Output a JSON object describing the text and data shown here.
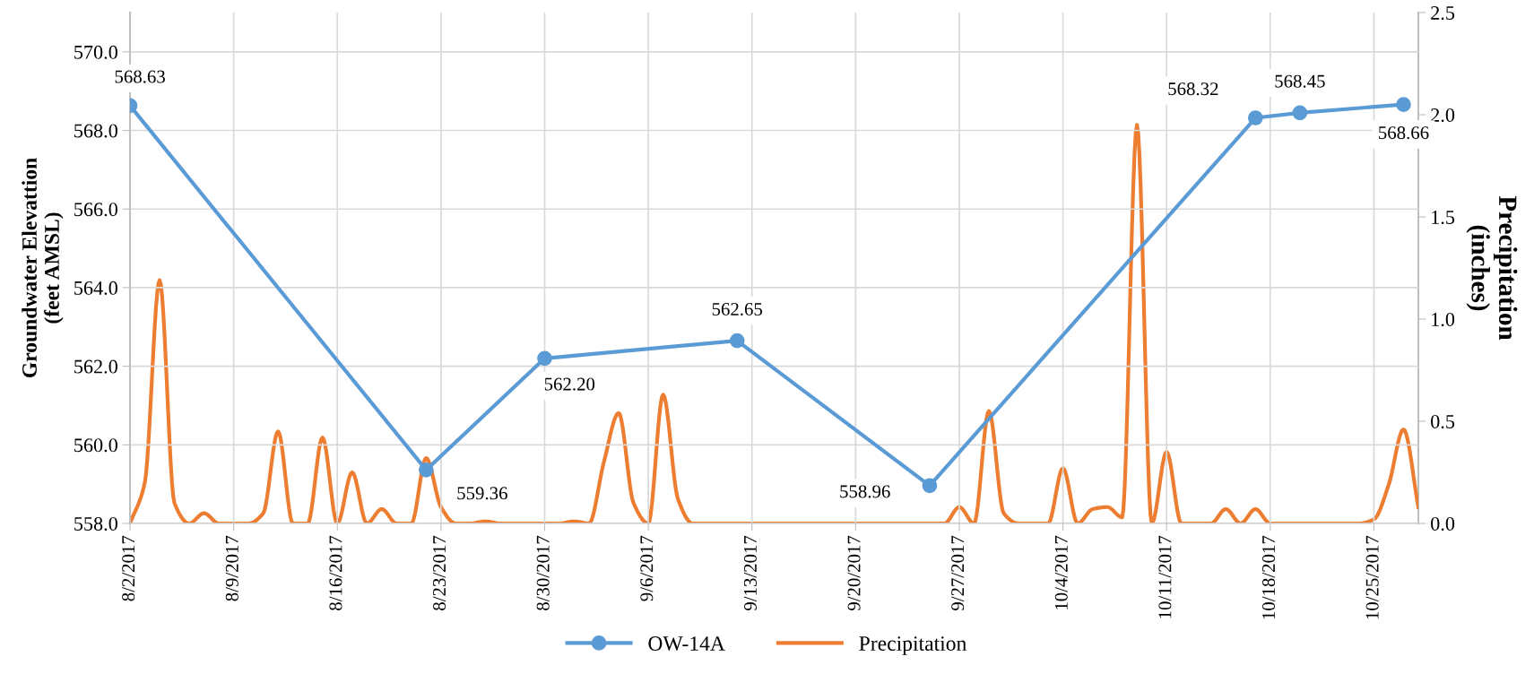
{
  "chart_data": {
    "type": "line",
    "ylabel": "Groundwater Elevattion\n(feet AMSL)",
    "y2label": "Precipitation\n(inches)",
    "xlim": [
      "2017-08-02",
      "2017-10-28"
    ],
    "xticks": [
      {
        "value": "2017-08-02",
        "label": "8/2/2017"
      },
      {
        "value": "2017-08-09",
        "label": "8/9/2017"
      },
      {
        "value": "2017-08-16",
        "label": "8/16/2017"
      },
      {
        "value": "2017-08-23",
        "label": "8/23/2017"
      },
      {
        "value": "2017-08-30",
        "label": "8/30/2017"
      },
      {
        "value": "2017-09-06",
        "label": "9/6/2017"
      },
      {
        "value": "2017-09-13",
        "label": "9/13/2017"
      },
      {
        "value": "2017-09-20",
        "label": "9/20/2017"
      },
      {
        "value": "2017-09-27",
        "label": "9/27/2017"
      },
      {
        "value": "2017-10-04",
        "label": "10/4/2017"
      },
      {
        "value": "2017-10-11",
        "label": "10/11/2017"
      },
      {
        "value": "2017-10-18",
        "label": "10/18/2017"
      },
      {
        "value": "2017-10-25",
        "label": "10/25/2017"
      }
    ],
    "ylim": [
      558,
      571
    ],
    "yticks": [
      {
        "value": 558,
        "label": "558.0"
      },
      {
        "value": 560,
        "label": "560.0"
      },
      {
        "value": 562,
        "label": "562.0"
      },
      {
        "value": 564,
        "label": "564.0"
      },
      {
        "value": 566,
        "label": "566.0"
      },
      {
        "value": 568,
        "label": "568.0"
      },
      {
        "value": 570,
        "label": "570.0"
      }
    ],
    "y2lim": [
      0,
      2.5
    ],
    "y2ticks": [
      {
        "value": 0,
        "label": "0.0"
      },
      {
        "value": 0.5,
        "label": "0.5"
      },
      {
        "value": 1,
        "label": "1.0"
      },
      {
        "value": 1.5,
        "label": "1.5"
      },
      {
        "value": 2,
        "label": "2.0"
      },
      {
        "value": 2.5,
        "label": "2.5"
      }
    ],
    "grid": true,
    "legend": "bottom",
    "series": [
      {
        "name": "OW-14A",
        "color": "#5b9bd5",
        "marker": "circle",
        "x": [
          "2017-08-02",
          "2017-08-22",
          "2017-08-30",
          "2017-09-12",
          "2017-09-25",
          "2017-10-17",
          "2017-10-20",
          "2017-10-27"
        ],
        "values": [
          568.63,
          559.36,
          562.2,
          562.65,
          558.96,
          568.32,
          568.45,
          568.66
        ],
        "value_labels": [
          "568.63",
          "559.36",
          "562.20",
          "562.65",
          "558.96",
          "568.32",
          "568.45",
          "568.66"
        ]
      },
      {
        "name": "Precipitation",
        "color": "#ed7d31",
        "marker": "none",
        "axis": "y2",
        "x": [
          "2017-08-02",
          "2017-08-03",
          "2017-08-04",
          "2017-08-05",
          "2017-08-06",
          "2017-08-07",
          "2017-08-08",
          "2017-08-09",
          "2017-08-10",
          "2017-08-11",
          "2017-08-12",
          "2017-08-13",
          "2017-08-14",
          "2017-08-15",
          "2017-08-16",
          "2017-08-17",
          "2017-08-18",
          "2017-08-19",
          "2017-08-20",
          "2017-08-21",
          "2017-08-22",
          "2017-08-23",
          "2017-08-24",
          "2017-08-25",
          "2017-08-26",
          "2017-08-27",
          "2017-08-28",
          "2017-08-29",
          "2017-08-30",
          "2017-08-31",
          "2017-09-01",
          "2017-09-02",
          "2017-09-03",
          "2017-09-04",
          "2017-09-05",
          "2017-09-06",
          "2017-09-07",
          "2017-09-08",
          "2017-09-09",
          "2017-09-10",
          "2017-09-11",
          "2017-09-12",
          "2017-09-13",
          "2017-09-14",
          "2017-09-15",
          "2017-09-16",
          "2017-09-17",
          "2017-09-18",
          "2017-09-19",
          "2017-09-20",
          "2017-09-21",
          "2017-09-22",
          "2017-09-23",
          "2017-09-24",
          "2017-09-25",
          "2017-09-26",
          "2017-09-27",
          "2017-09-28",
          "2017-09-29",
          "2017-09-30",
          "2017-10-01",
          "2017-10-02",
          "2017-10-03",
          "2017-10-04",
          "2017-10-05",
          "2017-10-06",
          "2017-10-07",
          "2017-10-08",
          "2017-10-09",
          "2017-10-10",
          "2017-10-11",
          "2017-10-12",
          "2017-10-13",
          "2017-10-14",
          "2017-10-15",
          "2017-10-16",
          "2017-10-17",
          "2017-10-18",
          "2017-10-19",
          "2017-10-20",
          "2017-10-21",
          "2017-10-22",
          "2017-10-23",
          "2017-10-24",
          "2017-10-25",
          "2017-10-26",
          "2017-10-27",
          "2017-10-28"
        ],
        "values": [
          0,
          0.2,
          1.19,
          0.1,
          0,
          0.05,
          0,
          0,
          0,
          0.05,
          0.45,
          0,
          0,
          0.42,
          0,
          0.25,
          0,
          0.07,
          0,
          0,
          0.32,
          0.08,
          0,
          0,
          0.01,
          0,
          0,
          0,
          0,
          0,
          0.01,
          0,
          0.3,
          0.54,
          0.1,
          0,
          0.63,
          0.12,
          0,
          0,
          0,
          0,
          0,
          0,
          0,
          0,
          0,
          0,
          0,
          0,
          0,
          0,
          0,
          0,
          0,
          0,
          0.08,
          0,
          0.55,
          0.05,
          0,
          0,
          0,
          0.27,
          0,
          0.07,
          0.08,
          0.03,
          1.95,
          0,
          0.35,
          0,
          0,
          0,
          0.07,
          0,
          0.07,
          0,
          0,
          0,
          0,
          0,
          0,
          0,
          0.02,
          0.19,
          0.46,
          0.08
        ]
      }
    ]
  }
}
